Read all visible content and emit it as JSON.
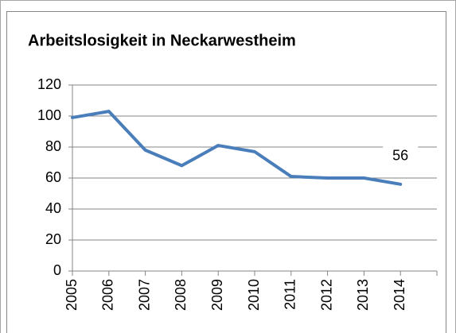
{
  "chart_data": {
    "type": "line",
    "title": "Arbeitslosigkeit in Neckarwestheim",
    "categories": [
      "2005",
      "2006",
      "2007",
      "2008",
      "2009",
      "2010",
      "2011",
      "2012",
      "2013",
      "2014"
    ],
    "values": [
      99,
      103,
      78,
      68,
      81,
      77,
      61,
      60,
      60,
      56
    ],
    "color": "#4a7ebb",
    "ylim": [
      0,
      120
    ],
    "yticks": [
      0,
      20,
      40,
      60,
      80,
      100,
      120
    ],
    "grid": true
  }
}
